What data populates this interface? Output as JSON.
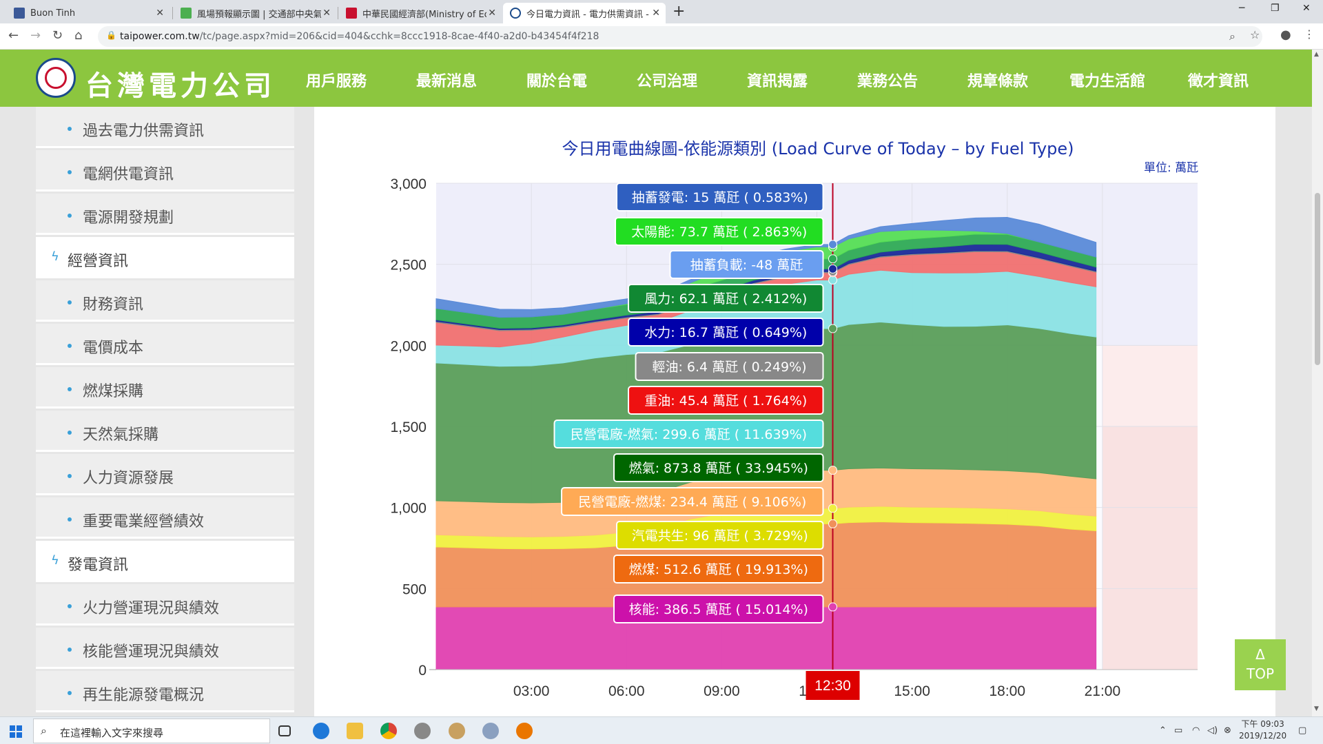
{
  "browser": {
    "tabs": [
      {
        "label": "Buon Tinh",
        "color": "#3b5998"
      },
      {
        "label": "風場預報顯示圖 | 交通部中央氣",
        "color": "#4caf50"
      },
      {
        "label": "中華民國經濟部(Ministry of Eco",
        "color": "#c8102e"
      },
      {
        "label": "今日電力資訊 - 電力供需資訊 - 資",
        "color": "#1a4a8a"
      }
    ],
    "url_domain": "taipower.com.tw",
    "url_path": "/tc/page.aspx?mid=206&cid=404&cchk=8ccc1918-8cae-4f40-a2d0-b43454f4f218"
  },
  "site": {
    "brand": "台灣電力公司",
    "menu": [
      "用戶服務",
      "最新消息",
      "關於台電",
      "公司治理",
      "資訊揭露",
      "業務公告",
      "規章條款",
      "電力生活館",
      "徵才資訊"
    ]
  },
  "sidebar": {
    "items": [
      {
        "label": "過去電力供需資訊",
        "cat": false
      },
      {
        "label": "電網供電資訊",
        "cat": false
      },
      {
        "label": "電源開發規劃",
        "cat": false
      },
      {
        "label": "經營資訊",
        "cat": true
      },
      {
        "label": "財務資訊",
        "cat": false
      },
      {
        "label": "電價成本",
        "cat": false
      },
      {
        "label": "燃煤採購",
        "cat": false
      },
      {
        "label": "天然氣採購",
        "cat": false
      },
      {
        "label": "人力資源發展",
        "cat": false
      },
      {
        "label": "重要電業經營績效",
        "cat": false
      },
      {
        "label": "發電資訊",
        "cat": true
      },
      {
        "label": "火力營運現況與績效",
        "cat": false
      },
      {
        "label": "核能營運現況與績效",
        "cat": false
      },
      {
        "label": "再生能源發電概況",
        "cat": false
      }
    ]
  },
  "chart_title": "今日用電曲線圖-依能源類別 (Load Curve of Today – by Fuel Type)",
  "chart_unit": "單位: 萬瓩",
  "chart_data": {
    "type": "area",
    "stacked": true,
    "x_ticks": [
      "03:00",
      "06:00",
      "09:00",
      "12:00",
      "15:00",
      "18:00",
      "21:00"
    ],
    "ylim": [
      0,
      3000
    ],
    "y_ticks": [
      "0",
      "500",
      "1,000",
      "1,500",
      "2,000",
      "2,500",
      "3,000"
    ],
    "cursor_time": "12:30",
    "x": [
      0,
      1,
      2,
      3,
      4,
      5,
      6,
      7,
      8,
      9,
      10,
      11,
      12,
      12.5,
      13,
      14,
      15,
      16,
      17,
      18,
      19,
      20,
      20.8
    ],
    "series": [
      {
        "name": "核能",
        "color": "#e040b0",
        "values": [
          386.5,
          386.5,
          386.5,
          386.5,
          386.5,
          386.5,
          386.5,
          386.5,
          386.5,
          386.5,
          386.5,
          386.5,
          386.5,
          386.5,
          386.5,
          386.5,
          386.5,
          386.5,
          386.5,
          386.5,
          386.5,
          386.5,
          386.5
        ]
      },
      {
        "name": "燃煤",
        "color": "#f0905a",
        "values": [
          370,
          365,
          360,
          358,
          360,
          365,
          380,
          400,
          450,
          480,
          500,
          510,
          512.6,
          512.6,
          520,
          525,
          520,
          518,
          515,
          510,
          500,
          480,
          470
        ]
      },
      {
        "name": "汽電共生",
        "color": "#f0f040",
        "values": [
          75,
          75,
          74,
          74,
          75,
          78,
          82,
          88,
          92,
          95,
          96,
          96,
          96,
          96,
          96,
          96,
          96,
          96,
          96,
          95,
          94,
          92,
          90
        ]
      },
      {
        "name": "民營電廠-燃煤",
        "color": "#ffbb80",
        "values": [
          210,
          210,
          210,
          210,
          210,
          212,
          215,
          220,
          226,
          230,
          232,
          234,
          234.4,
          234.4,
          236,
          236,
          236,
          236,
          235,
          235,
          234,
          234,
          230
        ]
      },
      {
        "name": "燃氣",
        "color": "#5a9e5a",
        "values": [
          850,
          845,
          840,
          845,
          860,
          880,
          880,
          860,
          850,
          850,
          860,
          870,
          873.8,
          873.8,
          890,
          900,
          890,
          880,
          885,
          900,
          890,
          880,
          875
        ]
      },
      {
        "name": "民營電廠-燃氣",
        "color": "#8ae2e4",
        "values": [
          110,
          115,
          120,
          140,
          160,
          170,
          180,
          190,
          210,
          230,
          260,
          280,
          299.6,
          299.6,
          310,
          320,
          320,
          330,
          330,
          330,
          320,
          315,
          310
        ]
      },
      {
        "name": "重油",
        "color": "#f07070",
        "values": [
          140,
          120,
          100,
          80,
          60,
          50,
          45,
          45,
          45,
          45,
          45,
          45,
          45.4,
          45.4,
          60,
          80,
          110,
          120,
          130,
          120,
          110,
          100,
          90
        ]
      },
      {
        "name": "輕油",
        "color": "#888888",
        "values": [
          6.4,
          6.4,
          6.4,
          6.4,
          6.4,
          6.4,
          6.4,
          6.4,
          6.4,
          6.4,
          6.4,
          6.4,
          6.4,
          6.4,
          6.4,
          6.4,
          6.4,
          6.4,
          6.4,
          6.4,
          6.4,
          6.4,
          6.4
        ]
      },
      {
        "name": "水力",
        "color": "#1a2a99",
        "values": [
          10,
          8,
          8,
          8,
          8,
          10,
          12,
          14,
          16,
          16,
          16,
          16,
          16.7,
          16.7,
          20,
          25,
          30,
          35,
          40,
          40,
          35,
          30,
          25
        ]
      },
      {
        "name": "風力",
        "color": "#2eaa55",
        "values": [
          70,
          70,
          68,
          68,
          66,
          66,
          65,
          64,
          63,
          63,
          62,
          62,
          62.1,
          62.1,
          62,
          62,
          62,
          62,
          62,
          62,
          62,
          62,
          62
        ]
      },
      {
        "name": "太陽能",
        "color": "#55dd55",
        "values": [
          0,
          0,
          0,
          0,
          0,
          0,
          5,
          20,
          40,
          60,
          70,
          73,
          73.7,
          73.7,
          70,
          65,
          55,
          40,
          20,
          5,
          0,
          0,
          0
        ]
      },
      {
        "name": "抽蓄發電",
        "color": "#5a8ad8",
        "values": [
          60,
          55,
          50,
          45,
          40,
          35,
          30,
          25,
          20,
          18,
          16,
          15,
          15,
          15,
          20,
          30,
          40,
          60,
          80,
          100,
          110,
          100,
          90
        ]
      }
    ],
    "tooltip": [
      {
        "text": "抽蓄發電: 15 萬瓩 ( 0.583%)",
        "bg": "#2f5fc0",
        "fg": "#ffffff"
      },
      {
        "text": "太陽能: 73.7 萬瓩 ( 2.863%)",
        "bg": "#22dd22",
        "fg": "#ffffff"
      },
      {
        "text": "抽蓄負載: -48 萬瓩",
        "bg": "#6a9ef0",
        "fg": "#ffffff"
      },
      {
        "text": "風力: 62.1 萬瓩 ( 2.412%)",
        "bg": "#118833",
        "fg": "#ffffff"
      },
      {
        "text": "水力: 16.7 萬瓩 ( 0.649%)",
        "bg": "#0000aa",
        "fg": "#ffffff"
      },
      {
        "text": "輕油: 6.4 萬瓩 ( 0.249%)",
        "bg": "#888888",
        "fg": "#ffffff"
      },
      {
        "text": "重油: 45.4 萬瓩 ( 1.764%)",
        "bg": "#ee1111",
        "fg": "#ffffff"
      },
      {
        "text": "民營電廠-燃氣: 299.6 萬瓩 ( 11.639%)",
        "bg": "#55dddd",
        "fg": "#ffffff"
      },
      {
        "text": "燃氣: 873.8 萬瓩 ( 33.945%)",
        "bg": "#006600",
        "fg": "#ffffff"
      },
      {
        "text": "民營電廠-燃煤: 234.4 萬瓩 ( 9.106%)",
        "bg": "#ffaa55",
        "fg": "#ffffff"
      },
      {
        "text": "汽電共生: 96 萬瓩 ( 3.729%)",
        "bg": "#dddd00",
        "fg": "#ffffff"
      },
      {
        "text": "燃煤: 512.6 萬瓩 ( 19.913%)",
        "bg": "#ee6a10",
        "fg": "#ffffff"
      },
      {
        "text": "核能: 386.5 萬瓩 ( 15.014%)",
        "bg": "#cc11aa",
        "fg": "#ffffff"
      }
    ]
  },
  "top_button": {
    "arrow": "Δ",
    "label": "TOP"
  },
  "taskbar": {
    "search_placeholder": "在這裡輸入文字來搜尋",
    "time": "下午 09:03",
    "date": "2019/12/20"
  }
}
